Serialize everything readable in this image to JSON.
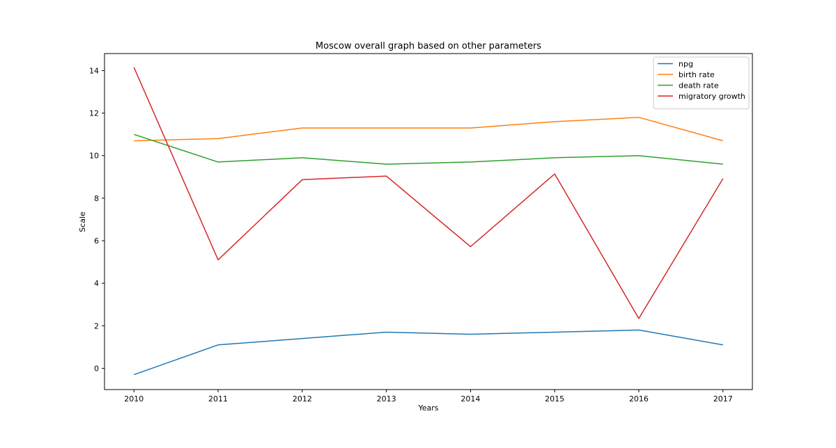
{
  "chart_data": {
    "type": "line",
    "title": "Moscow overall graph based on other parameters",
    "xlabel": "Years",
    "ylabel": "Scale",
    "x": [
      2010,
      2011,
      2012,
      2013,
      2014,
      2015,
      2016,
      2017
    ],
    "x_ticks": [
      "2010",
      "2011",
      "2012",
      "2013",
      "2014",
      "2015",
      "2016",
      "2017"
    ],
    "y_ticks": [
      0,
      2,
      4,
      6,
      8,
      10,
      12,
      14
    ],
    "xlim": [
      2009.65,
      2017.35
    ],
    "ylim": [
      -1.0,
      14.8
    ],
    "grid": false,
    "legend_position": "top-right",
    "series": [
      {
        "name": "npg",
        "color": "#1f77b4",
        "values": [
          -0.3,
          1.1,
          1.4,
          1.7,
          1.6,
          1.7,
          1.8,
          1.1
        ]
      },
      {
        "name": "birth rate",
        "color": "#ff7f0e",
        "values": [
          10.7,
          10.8,
          11.3,
          11.3,
          11.3,
          11.6,
          11.8,
          10.7
        ]
      },
      {
        "name": "death rate",
        "color": "#2ca02c",
        "values": [
          11.0,
          9.7,
          9.9,
          9.6,
          9.7,
          9.9,
          10.0,
          9.6
        ]
      },
      {
        "name": "migratory growth",
        "color": "#d62728",
        "values": [
          14.15,
          5.1,
          8.87,
          9.04,
          5.72,
          9.14,
          2.34,
          8.92
        ]
      }
    ]
  }
}
